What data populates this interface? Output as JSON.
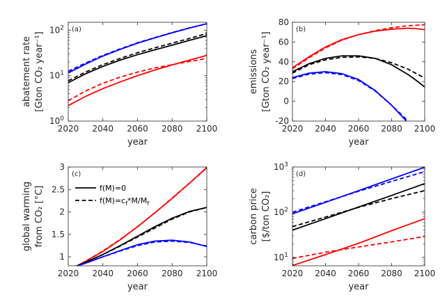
{
  "chart_data": [
    {
      "id": "a",
      "type": "line",
      "panel_label": "(a)",
      "yscale": "log",
      "xlabel": "year",
      "ylabel": [
        "abatement rate",
        "[Gton CO₂ year⁻¹]"
      ],
      "xlim": [
        2020,
        2100
      ],
      "ylim": [
        1,
        150
      ],
      "xticks": [
        2020,
        2040,
        2060,
        2080,
        2100
      ],
      "yticks": [
        {
          "v": 1,
          "base": "10",
          "exp": "0"
        },
        {
          "v": 10,
          "base": "10",
          "exp": "1"
        },
        {
          "v": 100,
          "base": "10",
          "exp": "2"
        }
      ],
      "x": [
        2020,
        2030,
        2040,
        2050,
        2060,
        2070,
        2080,
        2090,
        2100
      ],
      "series": [
        {
          "name": "blue f(M)=0",
          "color": "#0000ff",
          "style": "solid",
          "values": [
            11.5,
            18,
            27,
            38,
            52,
            68,
            88,
            112,
            140
          ]
        },
        {
          "name": "blue f(M)=cf*M/Mf",
          "color": "#0000ff",
          "style": "dashed",
          "values": [
            12.5,
            19,
            28,
            39,
            53,
            69,
            89,
            113,
            138
          ]
        },
        {
          "name": "black f(M)=0",
          "color": "#000000",
          "style": "solid",
          "values": [
            7,
            11,
            16,
            22,
            29,
            37,
            47,
            60,
            76
          ]
        },
        {
          "name": "black f(M)=cf*M/Mf",
          "color": "#000000",
          "style": "dashed",
          "values": [
            7.7,
            12,
            17.5,
            24,
            32,
            41,
            52,
            66,
            85
          ]
        },
        {
          "name": "red f(M)=0",
          "color": "#ff0000",
          "style": "solid",
          "values": [
            2.2,
            3.5,
            5.2,
            7.3,
            10,
            13.3,
            17.3,
            22,
            28
          ]
        },
        {
          "name": "red f(M)=cf*M/Mf",
          "color": "#ff0000",
          "style": "dashed",
          "values": [
            2.8,
            4.6,
            6.8,
            9.3,
            12,
            14.8,
            17.5,
            20.5,
            24
          ]
        }
      ]
    },
    {
      "id": "b",
      "type": "line",
      "panel_label": "(b)",
      "yscale": "linear",
      "xlabel": "year",
      "ylabel": [
        "emissions",
        "[Gton CO₂ year⁻¹]"
      ],
      "xlim": [
        2020,
        2100
      ],
      "ylim": [
        -20,
        80
      ],
      "xticks": [
        2020,
        2040,
        2060,
        2080,
        2100
      ],
      "yticks": [
        {
          "v": -20,
          "t": "-20"
        },
        {
          "v": 0,
          "t": "0"
        },
        {
          "v": 20,
          "t": "20"
        },
        {
          "v": 40,
          "t": "40"
        },
        {
          "v": 60,
          "t": "60"
        },
        {
          "v": 80,
          "t": "80"
        }
      ],
      "x": [
        2020,
        2030,
        2040,
        2050,
        2060,
        2070,
        2080,
        2090,
        2095,
        2100
      ],
      "series": [
        {
          "name": "red f(M)=0",
          "color": "#ff0000",
          "style": "solid",
          "values": [
            34,
            45,
            55,
            62.5,
            67.5,
            71,
            73,
            74,
            73.5,
            72.5
          ]
        },
        {
          "name": "red f(M)=cf*M/Mf",
          "color": "#ff0000",
          "style": "dashed",
          "values": [
            33,
            44,
            54,
            62,
            67.5,
            71.5,
            74.5,
            76.5,
            77,
            77.5
          ]
        },
        {
          "name": "black f(M)=0",
          "color": "#000000",
          "style": "solid",
          "values": [
            30,
            38,
            43.5,
            46,
            46,
            43.5,
            37,
            27,
            21,
            14.5
          ]
        },
        {
          "name": "black f(M)=cf*M/Mf",
          "color": "#000000",
          "style": "dashed",
          "values": [
            28.5,
            37,
            42,
            44.5,
            45,
            43.5,
            39,
            32.5,
            28,
            23.5
          ]
        },
        {
          "name": "blue f(M)=0",
          "color": "#0000ff",
          "style": "solid",
          "values": [
            24,
            28.5,
            30,
            28,
            22,
            11,
            -4,
            -22,
            null,
            null
          ]
        },
        {
          "name": "blue f(M)=cf*M/Mf",
          "color": "#0000ff",
          "style": "dashed",
          "values": [
            23,
            27.5,
            29,
            27,
            21,
            10.5,
            -4,
            -20,
            null,
            null
          ]
        }
      ]
    },
    {
      "id": "c",
      "type": "line",
      "panel_label": "(c)",
      "yscale": "linear",
      "xlabel": "year",
      "ylabel": [
        "global warming",
        "from CO₂ [°C]"
      ],
      "xlim": [
        2020,
        2100
      ],
      "ylim": [
        0.8,
        3
      ],
      "xticks": [
        2020,
        2040,
        2060,
        2080,
        2100
      ],
      "yticks": [
        {
          "v": 1,
          "t": "1"
        },
        {
          "v": 1.5,
          "t": "1.5"
        },
        {
          "v": 2,
          "t": "2"
        },
        {
          "v": 2.5,
          "t": "2.5"
        },
        {
          "v": 3,
          "t": "3"
        }
      ],
      "x": [
        2024,
        2030,
        2040,
        2050,
        2060,
        2070,
        2080,
        2090,
        2100
      ],
      "series": [
        {
          "name": "red f(M)=0",
          "color": "#ff0000",
          "style": "solid",
          "values": [
            0.78,
            0.9,
            1.12,
            1.38,
            1.67,
            1.98,
            2.3,
            2.64,
            2.99
          ]
        },
        {
          "name": "red f(M)=cf*M/Mf",
          "color": "#ff0000",
          "style": "dashed",
          "values": [
            0.78,
            0.9,
            1.13,
            1.39,
            1.67,
            1.98,
            2.31,
            2.64,
            2.98
          ]
        },
        {
          "name": "black f(M)=0",
          "color": "#000000",
          "style": "solid",
          "values": [
            0.78,
            0.88,
            1.05,
            1.25,
            1.46,
            1.67,
            1.86,
            2.01,
            2.1
          ]
        },
        {
          "name": "black f(M)=cf*M/Mf",
          "color": "#000000",
          "style": "dashed",
          "values": [
            0.78,
            0.88,
            1.05,
            1.24,
            1.44,
            1.64,
            1.84,
            2.0,
            2.1
          ]
        },
        {
          "name": "blue f(M)=0",
          "color": "#0000ff",
          "style": "solid",
          "values": [
            0.78,
            0.86,
            1.0,
            1.14,
            1.27,
            1.35,
            1.37,
            1.33,
            1.23
          ]
        },
        {
          "name": "blue f(M)=cf*M/Mf",
          "color": "#0000ff",
          "style": "dashed",
          "values": [
            0.78,
            0.86,
            1.0,
            1.13,
            1.25,
            1.33,
            1.35,
            1.32,
            1.24
          ]
        }
      ],
      "legend": {
        "position": "top-left",
        "entries": [
          {
            "style": "solid",
            "label": "f(M)=0"
          },
          {
            "style": "dashed",
            "label_parts": [
              "f(M)=c",
              "f",
              "*M/M",
              "f"
            ]
          }
        ]
      }
    },
    {
      "id": "d",
      "type": "line",
      "panel_label": "(d)",
      "yscale": "log",
      "xlabel": "year",
      "ylabel": [
        "carbon price",
        "[$/ton CO₂]"
      ],
      "xlim": [
        2020,
        2100
      ],
      "ylim": [
        6.5,
        1000
      ],
      "xticks": [
        2020,
        2040,
        2060,
        2080,
        2100
      ],
      "yticks": [
        {
          "v": 10,
          "base": "10",
          "exp": "1"
        },
        {
          "v": 100,
          "base": "10",
          "exp": "2"
        },
        {
          "v": 1000,
          "base": "10",
          "exp": "3"
        }
      ],
      "x": [
        2020,
        2040,
        2060,
        2080,
        2100
      ],
      "series": [
        {
          "name": "blue f(M)=0",
          "color": "#0000ff",
          "style": "solid",
          "values": [
            92,
            165,
            300,
            545,
            990
          ]
        },
        {
          "name": "blue f(M)=cf*M/Mf",
          "color": "#0000ff",
          "style": "dashed",
          "values": [
            100,
            170,
            290,
            480,
            790
          ]
        },
        {
          "name": "black f(M)=0",
          "color": "#000000",
          "style": "solid",
          "values": [
            40,
            72,
            130,
            235,
            430
          ]
        },
        {
          "name": "black f(M)=cf*M/Mf",
          "color": "#000000",
          "style": "dashed",
          "values": [
            48,
            78,
            128,
            200,
            300
          ]
        },
        {
          "name": "red f(M)=0",
          "color": "#ff0000",
          "style": "solid",
          "values": [
            6.6,
            11.5,
            20.5,
            39,
            72
          ]
        },
        {
          "name": "red f(M)=cf*M/Mf",
          "color": "#ff0000",
          "style": "dashed",
          "values": [
            9.5,
            13,
            17,
            22,
            29
          ]
        }
      ]
    }
  ]
}
